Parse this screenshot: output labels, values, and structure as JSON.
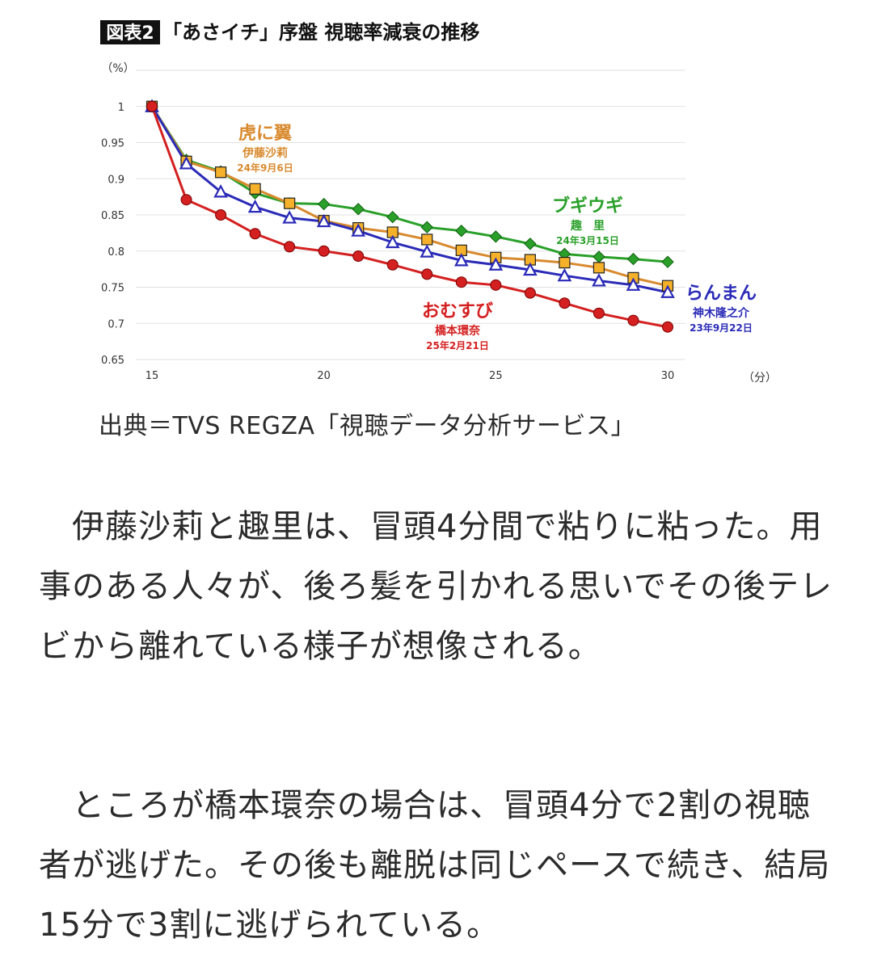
{
  "chart_data": {
    "type": "line",
    "title_badge": "図表2",
    "title": "「あさイチ」序盤 視聴率減衰の推移",
    "ylabel": "（%）",
    "xlabel": "（分）",
    "x": [
      15,
      16,
      17,
      18,
      19,
      20,
      21,
      22,
      23,
      24,
      25,
      26,
      27,
      28,
      29,
      30
    ],
    "xlim": [
      15,
      30
    ],
    "ylim": [
      0.65,
      1.0
    ],
    "x_ticks": [
      15,
      20,
      25,
      30
    ],
    "y_ticks": [
      0.65,
      0.7,
      0.75,
      0.8,
      0.85,
      0.9,
      0.95,
      1
    ],
    "y_tick_labels": [
      "0.65",
      "0.7",
      "0.75",
      "0.8",
      "0.85",
      "0.9",
      "0.95",
      "1"
    ],
    "grid": true,
    "series": [
      {
        "key": "boogie",
        "color": "#2aa02a",
        "marker": "diamond",
        "values": [
          1.0,
          0.926,
          0.91,
          0.88,
          0.866,
          0.865,
          0.858,
          0.847,
          0.833,
          0.828,
          0.82,
          0.81,
          0.796,
          0.792,
          0.789,
          0.785
        ],
        "label": {
          "name": "ブギウギ",
          "lines": [
            "趣　里",
            "24年3月15日"
          ]
        }
      },
      {
        "key": "tora",
        "color": "#d88a2e",
        "marker": "square",
        "values": [
          1.0,
          0.924,
          0.909,
          0.886,
          0.866,
          0.842,
          0.832,
          0.826,
          0.816,
          0.801,
          0.791,
          0.788,
          0.784,
          0.777,
          0.763,
          0.752
        ],
        "label": {
          "name": "虎に翼",
          "lines": [
            "伊藤沙莉",
            "24年9月6日"
          ]
        }
      },
      {
        "key": "ranman",
        "color": "#2a2ab8",
        "marker": "triangle",
        "values": [
          1.0,
          0.921,
          0.882,
          0.861,
          0.846,
          0.841,
          0.828,
          0.812,
          0.799,
          0.787,
          0.781,
          0.774,
          0.766,
          0.759,
          0.753,
          0.743
        ],
        "label": {
          "name": "らんまん",
          "lines": [
            "神木隆之介",
            "23年9月22日"
          ]
        }
      },
      {
        "key": "omusubi",
        "color": "#d42020",
        "marker": "circle",
        "values": [
          1.0,
          0.871,
          0.85,
          0.824,
          0.806,
          0.8,
          0.793,
          0.781,
          0.768,
          0.757,
          0.753,
          0.742,
          0.728,
          0.714,
          0.704,
          0.695
        ],
        "label": {
          "name": "おむすび",
          "lines": [
            "橋本環奈",
            "25年2月21日"
          ]
        }
      }
    ]
  },
  "caption": "出典＝TVS REGZA「視聴データ分析サービス」",
  "paragraphs": [
    "　伊藤沙莉と趣里は、冒頭4分間で粘りに粘った。用事のある人々が、後ろ髪を引かれる思いでその後テレビから離れている様子が想像される。",
    "　ところが橋本環奈の場合は、冒頭4分で2割の視聴者が逃げた。その後も離脱は同じペースで続き、結局15分で3割に逃げられている。"
  ]
}
